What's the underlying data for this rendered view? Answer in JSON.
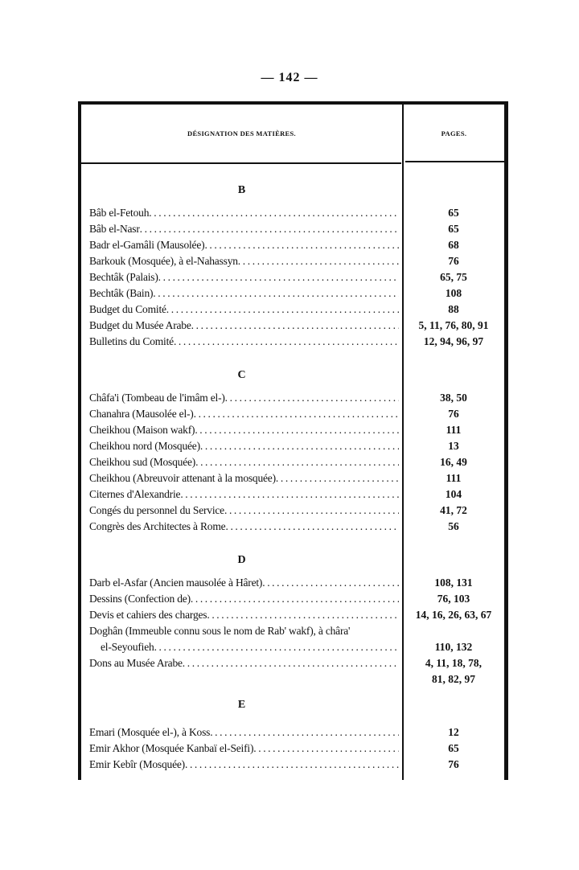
{
  "page_number": "— 142 —",
  "table": {
    "header_left": "DÉSIGNATION DES MATIÈRES.",
    "header_right": "PAGES."
  },
  "sections": [
    {
      "letter": "B",
      "entries": [
        {
          "label": "Bâb el-Fetouh",
          "pages": "65"
        },
        {
          "label": "Bâb el-Nasr",
          "pages": "65"
        },
        {
          "label": "Badr el-Gamâli (Mausolée)",
          "pages": "68"
        },
        {
          "label": "Barkouk (Mosquée), à el-Nahassyn",
          "pages": "76"
        },
        {
          "label": "Bechtâk (Palais)",
          "pages": "65, 75"
        },
        {
          "label": "Bechtâk (Bain)",
          "pages": "108"
        },
        {
          "label": "Budget du Comité",
          "pages": "88"
        },
        {
          "label": "Budget du Musée Arabe",
          "pages": "5, 11, 76, 80, 91"
        },
        {
          "label": "Bulletins du Comité",
          "pages": "12, 94, 96, 97"
        }
      ]
    },
    {
      "letter": "C",
      "entries": [
        {
          "label": "Châfa'i (Tombeau de l'imâm el-)",
          "pages": "38, 50"
        },
        {
          "label": "Chanahra (Mausolée el-)",
          "pages": "76"
        },
        {
          "label": "Cheikhou (Maison wakf)",
          "pages": "111"
        },
        {
          "label": "Cheikhou nord (Mosquée)",
          "pages": "13"
        },
        {
          "label": "Cheikhou sud (Mosquée)",
          "pages": "16, 49"
        },
        {
          "label": "Cheikhou (Abreuvoir attenant à la mosquée)",
          "pages": "111"
        },
        {
          "label": "Citernes d'Alexandrie",
          "pages": "104"
        },
        {
          "label": "Congés du personnel du Service",
          "pages": "41, 72"
        },
        {
          "label": "Congrès des Architectes à Rome",
          "pages": "56"
        }
      ]
    },
    {
      "letter": "D",
      "entries": [
        {
          "label": "Darb el-Asfar (Ancien mausolée à Hâret)",
          "pages": "108, 131"
        },
        {
          "label": "Dessins (Confection de)",
          "pages": "76, 103"
        },
        {
          "label": "Devis et cahiers des charges",
          "pages": "14, 16, 26, 63, 67"
        },
        {
          "label": "Doghân (Immeuble connu sous le nom de Rab' wakf), à châra'",
          "continuation": "el-Seyoufieh",
          "pages": "110, 132"
        },
        {
          "label": "Dons au Musée Arabe",
          "pages": "4, 11, 18, 78,",
          "pages_continuation": "81, 82, 97"
        }
      ]
    },
    {
      "letter": "E",
      "entries": [
        {
          "label": "Emari (Mosquée el-), à Koss",
          "pages": "12"
        },
        {
          "label": "Emir Akhor (Mosquée Kanbaï el-Seifi)",
          "pages": "65"
        },
        {
          "label": "Emir Kebîr (Mosquée)",
          "pages": "76"
        }
      ]
    }
  ]
}
